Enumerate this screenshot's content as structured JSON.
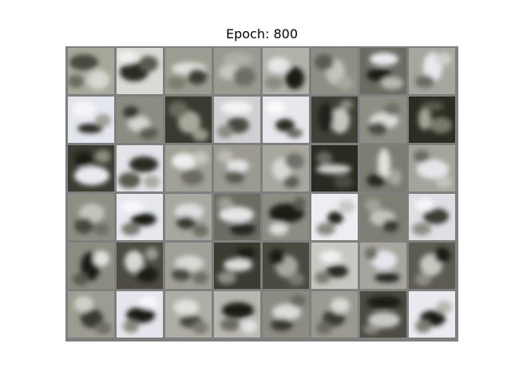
{
  "title": "Epoch: 800",
  "grid": {
    "rows": 6,
    "cols": 8,
    "border_color": "#7f7f7f",
    "tiles": [
      {
        "bg": "#a8a89a",
        "blobs": [
          [
            "#4a4a40",
            20,
            18,
            18,
            10
          ],
          [
            "#d8d8d0",
            38,
            40,
            14,
            12
          ],
          [
            "#6a6a5e",
            10,
            42,
            10,
            8
          ]
        ]
      },
      {
        "bg": "#d8dad6",
        "blobs": [
          [
            "#2a2a24",
            22,
            30,
            18,
            12
          ],
          [
            "#5a5a50",
            40,
            20,
            12,
            10
          ],
          [
            "#f0f0f0",
            14,
            12,
            12,
            8
          ]
        ]
      },
      {
        "bg": "#9c9c90",
        "blobs": [
          [
            "#e0e0dc",
            30,
            26,
            22,
            8
          ],
          [
            "#3c3c34",
            40,
            36,
            12,
            10
          ],
          [
            "#7c7c70",
            14,
            44,
            12,
            8
          ]
        ]
      },
      {
        "bg": "#9a9a90",
        "blobs": [
          [
            "#c8c8c0",
            20,
            30,
            14,
            10
          ],
          [
            "#6e6e64",
            38,
            36,
            14,
            12
          ],
          [
            "#b0b0a6",
            30,
            14,
            18,
            8
          ]
        ]
      },
      {
        "bg": "#b2b2aa",
        "blobs": [
          [
            "#1e1e18",
            40,
            38,
            12,
            14
          ],
          [
            "#e6e6e6",
            20,
            22,
            14,
            10
          ],
          [
            "#8a8a80",
            14,
            44,
            12,
            8
          ]
        ]
      },
      {
        "bg": "#8e8e84",
        "blobs": [
          [
            "#c4c4bc",
            30,
            30,
            12,
            16
          ],
          [
            "#5c5c52",
            16,
            18,
            12,
            10
          ],
          [
            "#a8a89e",
            42,
            44,
            10,
            8
          ]
        ]
      },
      {
        "bg": "#6c6c62",
        "blobs": [
          [
            "#e8e8ee",
            30,
            14,
            18,
            8
          ],
          [
            "#1a1a14",
            24,
            34,
            16,
            8
          ],
          [
            "#b8b8b0",
            40,
            44,
            14,
            8
          ]
        ]
      },
      {
        "bg": "#a6a69e",
        "blobs": [
          [
            "#e8e8ec",
            30,
            24,
            12,
            18
          ],
          [
            "#6a6a60",
            20,
            42,
            12,
            8
          ],
          [
            "#d0d0cc",
            44,
            14,
            10,
            8
          ]
        ]
      },
      {
        "bg": "#e4e6ee",
        "blobs": [
          [
            "#2c2c26",
            28,
            40,
            16,
            6
          ],
          [
            "#f6f6f8",
            20,
            16,
            14,
            10
          ],
          [
            "#a0a098",
            44,
            30,
            10,
            8
          ]
        ]
      },
      {
        "bg": "#8c8c82",
        "blobs": [
          [
            "#d4d4d0",
            28,
            34,
            14,
            10
          ],
          [
            "#3a3a32",
            18,
            20,
            10,
            8
          ],
          [
            "#5c5c52",
            40,
            46,
            12,
            8
          ]
        ]
      },
      {
        "bg": "#3a3a30",
        "blobs": [
          [
            "#a8a89c",
            30,
            32,
            14,
            14
          ],
          [
            "#6a6a5e",
            16,
            16,
            12,
            10
          ],
          [
            "#9a9a8c",
            44,
            48,
            10,
            8
          ]
        ]
      },
      {
        "bg": "#cfd0d2",
        "blobs": [
          [
            "#f4f4f6",
            28,
            14,
            20,
            8
          ],
          [
            "#4a4a42",
            30,
            36,
            14,
            10
          ],
          [
            "#8a8a80",
            14,
            44,
            10,
            8
          ]
        ]
      },
      {
        "bg": "#e6e8ee",
        "blobs": [
          [
            "#2a2a22",
            28,
            36,
            12,
            8
          ],
          [
            "#6c6c62",
            40,
            46,
            10,
            6
          ],
          [
            "#fafafa",
            16,
            14,
            12,
            8
          ]
        ]
      },
      {
        "bg": "#404036",
        "blobs": [
          [
            "#c6c6be",
            36,
            30,
            12,
            16
          ],
          [
            "#22221c",
            18,
            26,
            10,
            18
          ],
          [
            "#8a8a80",
            44,
            10,
            8,
            6
          ]
        ]
      },
      {
        "bg": "#8e8e84",
        "blobs": [
          [
            "#dcdcd8",
            30,
            30,
            18,
            10
          ],
          [
            "#4c4c42",
            22,
            40,
            12,
            8
          ],
          [
            "#6e6e64",
            40,
            16,
            10,
            8
          ]
        ]
      },
      {
        "bg": "#2c2c22",
        "blobs": [
          [
            "#a4a496",
            20,
            28,
            8,
            14
          ],
          [
            "#7a7a6c",
            40,
            36,
            14,
            10
          ],
          [
            "#5a5a4e",
            30,
            12,
            14,
            6
          ]
        ]
      },
      {
        "bg": "#3c3c32",
        "blobs": [
          [
            "#e8eaf0",
            30,
            38,
            22,
            12
          ],
          [
            "#1a1a14",
            20,
            18,
            12,
            10
          ],
          [
            "#8c8c80",
            44,
            14,
            10,
            8
          ]
        ]
      },
      {
        "bg": "#e2e4ea",
        "blobs": [
          [
            "#2a2a22",
            34,
            24,
            18,
            10
          ],
          [
            "#5a5a50",
            16,
            44,
            14,
            10
          ],
          [
            "#a8a8a0",
            44,
            46,
            10,
            8
          ]
        ]
      },
      {
        "bg": "#a0a096",
        "blobs": [
          [
            "#eeeef0",
            24,
            20,
            16,
            10
          ],
          [
            "#6c6c62",
            34,
            40,
            14,
            10
          ],
          [
            "#c8c8c0",
            44,
            16,
            10,
            8
          ]
        ]
      },
      {
        "bg": "#9a9a90",
        "blobs": [
          [
            "#e4e4e6",
            30,
            26,
            14,
            8
          ],
          [
            "#5a5a50",
            26,
            40,
            12,
            8
          ],
          [
            "#bcbcb4",
            14,
            14,
            10,
            8
          ]
        ]
      },
      {
        "bg": "#a8a8a0",
        "blobs": [
          [
            "#d8d8d4",
            24,
            30,
            12,
            14
          ],
          [
            "#70706a",
            40,
            20,
            12,
            10
          ],
          [
            "#5e5e54",
            36,
            46,
            10,
            8
          ]
        ]
      },
      {
        "bg": "#2a2a22",
        "blobs": [
          [
            "#d0d0cc",
            28,
            30,
            22,
            6
          ],
          [
            "#6a6a60",
            16,
            16,
            10,
            8
          ],
          [
            "#4c4c42",
            40,
            46,
            12,
            8
          ]
        ]
      },
      {
        "bg": "#7c7c72",
        "blobs": [
          [
            "#e0e0dc",
            30,
            24,
            8,
            20
          ],
          [
            "#2c2c24",
            20,
            44,
            12,
            8
          ],
          [
            "#a8a89e",
            44,
            40,
            8,
            10
          ]
        ]
      },
      {
        "bg": "#a4a49c",
        "blobs": [
          [
            "#e6e6ea",
            30,
            30,
            20,
            12
          ],
          [
            "#6a6a60",
            16,
            14,
            10,
            8
          ],
          [
            "#c4c4bc",
            44,
            46,
            10,
            8
          ]
        ]
      },
      {
        "bg": "#8e8e84",
        "blobs": [
          [
            "#c4c4bc",
            30,
            24,
            16,
            12
          ],
          [
            "#4a4a40",
            20,
            40,
            12,
            10
          ],
          [
            "#6e6e64",
            42,
            44,
            10,
            8
          ]
        ]
      },
      {
        "bg": "#e6e8ee",
        "blobs": [
          [
            "#1e1e18",
            34,
            32,
            16,
            8
          ],
          [
            "#7a7a70",
            18,
            44,
            12,
            8
          ],
          [
            "#f8f8fa",
            20,
            16,
            14,
            8
          ]
        ]
      },
      {
        "bg": "#a8a8a0",
        "blobs": [
          [
            "#dedee0",
            30,
            22,
            18,
            10
          ],
          [
            "#3a3a32",
            26,
            36,
            12,
            8
          ],
          [
            "#6e6e64",
            44,
            46,
            10,
            8
          ]
        ]
      },
      {
        "bg": "#6c6c62",
        "blobs": [
          [
            "#e4e4e6",
            28,
            26,
            22,
            10
          ],
          [
            "#262620",
            36,
            44,
            16,
            8
          ],
          [
            "#9e9e94",
            14,
            12,
            10,
            8
          ]
        ]
      },
      {
        "bg": "#8c8c82",
        "blobs": [
          [
            "#1e1e18",
            30,
            24,
            22,
            12
          ],
          [
            "#dcdcd8",
            20,
            44,
            12,
            8
          ],
          [
            "#5c5c52",
            46,
            12,
            8,
            8
          ]
        ]
      },
      {
        "bg": "#eceef2",
        "blobs": [
          [
            "#262620",
            30,
            30,
            10,
            8
          ],
          [
            "#8a8a80",
            18,
            44,
            12,
            8
          ],
          [
            "#c8c8c4",
            44,
            16,
            10,
            8
          ]
        ]
      },
      {
        "bg": "#7e7e74",
        "blobs": [
          [
            "#c4c4bc",
            28,
            30,
            16,
            10
          ],
          [
            "#3a3a32",
            38,
            40,
            10,
            8
          ],
          [
            "#a2a298",
            16,
            14,
            10,
            8
          ]
        ]
      },
      {
        "bg": "#dedfe4",
        "blobs": [
          [
            "#3c3c34",
            34,
            28,
            16,
            10
          ],
          [
            "#8e8e84",
            16,
            44,
            12,
            8
          ],
          [
            "#f6f6f8",
            20,
            14,
            12,
            8
          ]
        ]
      },
      {
        "bg": "#8c8c82",
        "blobs": [
          [
            "#1c1c16",
            28,
            30,
            12,
            18
          ],
          [
            "#e0e0dc",
            42,
            20,
            10,
            10
          ],
          [
            "#5a5a50",
            16,
            46,
            10,
            8
          ]
        ]
      },
      {
        "bg": "#4c4c42",
        "blobs": [
          [
            "#d6d6d2",
            22,
            24,
            12,
            14
          ],
          [
            "#1a1a14",
            38,
            40,
            14,
            10
          ],
          [
            "#9c9c90",
            44,
            14,
            8,
            8
          ]
        ]
      },
      {
        "bg": "#a0a098",
        "blobs": [
          [
            "#d8d8d4",
            30,
            26,
            18,
            10
          ],
          [
            "#4a4a40",
            20,
            40,
            12,
            8
          ],
          [
            "#6e6e64",
            44,
            44,
            10,
            8
          ]
        ]
      },
      {
        "bg": "#3c3c32",
        "blobs": [
          [
            "#dcdcd8",
            30,
            28,
            18,
            8
          ],
          [
            "#8e8e84",
            16,
            44,
            12,
            8
          ],
          [
            "#1e1e18",
            40,
            14,
            12,
            8
          ]
        ]
      },
      {
        "bg": "#4a4a40",
        "blobs": [
          [
            "#a8a89e",
            30,
            30,
            14,
            14
          ],
          [
            "#1e1e18",
            18,
            18,
            10,
            10
          ],
          [
            "#7a7a70",
            42,
            46,
            10,
            8
          ]
        ]
      },
      {
        "bg": "#c8c8c2",
        "blobs": [
          [
            "#2c2c24",
            32,
            36,
            14,
            8
          ],
          [
            "#f0f0f2",
            24,
            18,
            14,
            8
          ],
          [
            "#7e7e74",
            14,
            44,
            10,
            8
          ]
        ]
      },
      {
        "bg": "#a6a69e",
        "blobs": [
          [
            "#e4e6ee",
            30,
            22,
            16,
            12
          ],
          [
            "#262620",
            34,
            44,
            16,
            6
          ],
          [
            "#6e6e64",
            14,
            14,
            8,
            8
          ]
        ]
      },
      {
        "bg": "#5c5c52",
        "blobs": [
          [
            "#c8c8c0",
            28,
            28,
            14,
            14
          ],
          [
            "#1c1c16",
            42,
            16,
            10,
            10
          ],
          [
            "#8e8e84",
            18,
            46,
            10,
            8
          ]
        ]
      },
      {
        "bg": "#9c9c92",
        "blobs": [
          [
            "#3a3a32",
            30,
            34,
            14,
            12
          ],
          [
            "#d0d0ca",
            20,
            16,
            12,
            10
          ],
          [
            "#6e6e64",
            44,
            46,
            10,
            8
          ]
        ]
      },
      {
        "bg": "#e4e6ec",
        "blobs": [
          [
            "#1e1e18",
            30,
            30,
            18,
            10
          ],
          [
            "#8a8a80",
            18,
            44,
            10,
            8
          ],
          [
            "#f8f8fa",
            40,
            14,
            12,
            8
          ]
        ]
      },
      {
        "bg": "#aeaea6",
        "blobs": [
          [
            "#e0e0dc",
            26,
            20,
            16,
            10
          ],
          [
            "#4a4a40",
            32,
            38,
            14,
            8
          ],
          [
            "#7c7c72",
            44,
            46,
            10,
            8
          ]
        ]
      },
      {
        "bg": "#b8b8b0",
        "blobs": [
          [
            "#1e1e18",
            30,
            24,
            20,
            10
          ],
          [
            "#6a6a60",
            20,
            42,
            12,
            8
          ],
          [
            "#e4e4e6",
            44,
            44,
            10,
            8
          ]
        ]
      },
      {
        "bg": "#8c8c82",
        "blobs": [
          [
            "#dcdcd8",
            30,
            26,
            18,
            10
          ],
          [
            "#3a3a32",
            24,
            42,
            14,
            8
          ],
          [
            "#6a6a60",
            44,
            12,
            10,
            8
          ]
        ]
      },
      {
        "bg": "#9a9a90",
        "blobs": [
          [
            "#3a3a32",
            28,
            34,
            14,
            10
          ],
          [
            "#d8d8d4",
            36,
            18,
            12,
            10
          ],
          [
            "#6c6c62",
            16,
            46,
            10,
            8
          ]
        ]
      },
      {
        "bg": "#4c4c42",
        "blobs": [
          [
            "#1c1c16",
            30,
            14,
            22,
            8
          ],
          [
            "#c8c8c4",
            30,
            36,
            20,
            10
          ],
          [
            "#8a8a80",
            14,
            48,
            10,
            6
          ]
        ]
      },
      {
        "bg": "#eaebf0",
        "blobs": [
          [
            "#1e1e18",
            30,
            34,
            16,
            10
          ],
          [
            "#7e7e74",
            18,
            44,
            10,
            8
          ],
          [
            "#b8b8b0",
            44,
            20,
            10,
            8
          ]
        ]
      }
    ]
  }
}
